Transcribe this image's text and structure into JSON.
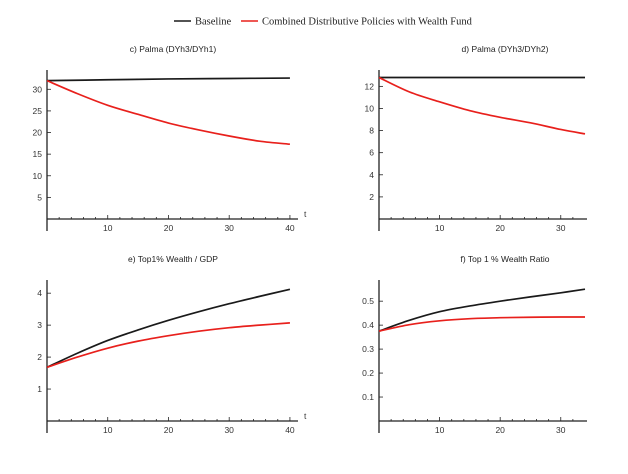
{
  "legend": {
    "items": [
      {
        "label": "Baseline",
        "color": "#1a1a1a"
      },
      {
        "label": "Combined Distributive Policies with Wealth Fund",
        "color": "#e8201c"
      }
    ]
  },
  "colors": {
    "baseline": "#1a1a1a",
    "policy": "#e8201c"
  },
  "chart_data": [
    {
      "type": "line",
      "title": "c) Palma (DYh3/DYh1)",
      "xlabel": "t",
      "ylabel": "",
      "xlim": [
        0,
        41
      ],
      "ylim": [
        0,
        34
      ],
      "xticks": [
        10,
        20,
        30,
        40
      ],
      "yticks": [
        5,
        10,
        15,
        20,
        25,
        30
      ],
      "grid": false,
      "series": [
        {
          "name": "Baseline",
          "x": [
            0,
            10,
            20,
            30,
            40
          ],
          "values": [
            32.0,
            32.2,
            32.4,
            32.5,
            32.6
          ]
        },
        {
          "name": "Combined Distributive Policies with Wealth Fund",
          "x": [
            0,
            5,
            10,
            15,
            20,
            25,
            30,
            35,
            40
          ],
          "values": [
            32.0,
            29.0,
            26.3,
            24.2,
            22.2,
            20.6,
            19.2,
            18.0,
            17.3
          ]
        }
      ]
    },
    {
      "type": "line",
      "title": "d) Palma (DYh3/DYh2)",
      "xlabel": "",
      "ylabel": "",
      "xlim": [
        0,
        34
      ],
      "ylim": [
        0,
        13.3
      ],
      "xticks": [
        10,
        20,
        30
      ],
      "yticks": [
        2,
        4,
        6,
        8,
        10,
        12
      ],
      "grid": false,
      "series": [
        {
          "name": "Baseline",
          "x": [
            0,
            10,
            20,
            30,
            34
          ],
          "values": [
            12.8,
            12.8,
            12.8,
            12.8,
            12.8
          ]
        },
        {
          "name": "Combined Distributive Policies with Wealth Fund",
          "x": [
            0,
            5,
            10,
            15,
            20,
            25,
            30,
            34
          ],
          "values": [
            12.8,
            11.5,
            10.6,
            9.8,
            9.2,
            8.7,
            8.1,
            7.7
          ]
        }
      ]
    },
    {
      "type": "line",
      "title": "e) Top1% Wealth / GDP",
      "xlabel": "t",
      "ylabel": "",
      "xlim": [
        0,
        41
      ],
      "ylim": [
        0,
        4.35
      ],
      "xticks": [
        10,
        20,
        30,
        40
      ],
      "yticks": [
        1,
        2,
        3,
        4
      ],
      "grid": false,
      "series": [
        {
          "name": "Baseline",
          "x": [
            0,
            5,
            10,
            15,
            20,
            25,
            30,
            35,
            40
          ],
          "values": [
            1.68,
            2.12,
            2.52,
            2.85,
            3.15,
            3.42,
            3.67,
            3.9,
            4.12
          ]
        },
        {
          "name": "Combined Distributive Policies with Wealth Fund",
          "x": [
            0,
            5,
            10,
            15,
            20,
            25,
            30,
            35,
            40
          ],
          "values": [
            1.68,
            2.0,
            2.28,
            2.5,
            2.67,
            2.81,
            2.92,
            3.0,
            3.07
          ]
        }
      ]
    },
    {
      "type": "line",
      "title": "f) Top 1 % Wealth Ratio",
      "xlabel": "",
      "ylabel": "",
      "xlim": [
        0,
        34
      ],
      "ylim": [
        0,
        0.58
      ],
      "xticks": [
        10,
        20,
        30
      ],
      "yticks": [
        0.1,
        0.2,
        0.3,
        0.4,
        0.5
      ],
      "grid": false,
      "series": [
        {
          "name": "Baseline",
          "x": [
            0,
            5,
            10,
            15,
            20,
            25,
            30,
            34
          ],
          "values": [
            0.375,
            0.42,
            0.456,
            0.48,
            0.5,
            0.518,
            0.535,
            0.55
          ]
        },
        {
          "name": "Combined Distributive Policies with Wealth Fund",
          "x": [
            0,
            5,
            10,
            15,
            20,
            25,
            30,
            34
          ],
          "values": [
            0.375,
            0.402,
            0.418,
            0.427,
            0.431,
            0.433,
            0.434,
            0.434
          ]
        }
      ]
    }
  ]
}
